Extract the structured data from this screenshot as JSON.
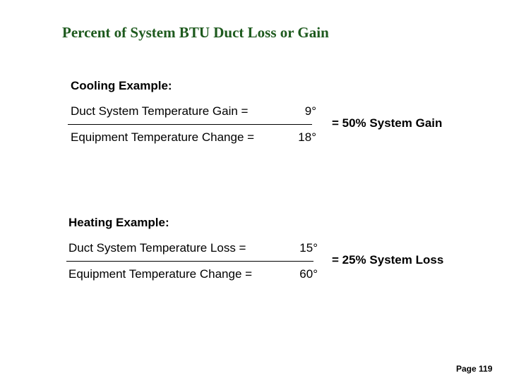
{
  "title": "Percent of System BTU Duct Loss or Gain",
  "cooling": {
    "label": "Cooling Example:",
    "numerator": {
      "text": "Duct System Temperature Gain =",
      "value": "9°"
    },
    "denominator": {
      "text": "Equipment Temperature Change =",
      "value": "18°"
    },
    "result": "= 50% System Gain"
  },
  "heating": {
    "label": "Heating Example:",
    "numerator": {
      "text": "Duct System Temperature Loss =",
      "value": "15°"
    },
    "denominator": {
      "text": "Equipment Temperature Change =",
      "value": "60°"
    },
    "result": "= 25% System Loss"
  },
  "footer": {
    "page": "Page 119"
  }
}
